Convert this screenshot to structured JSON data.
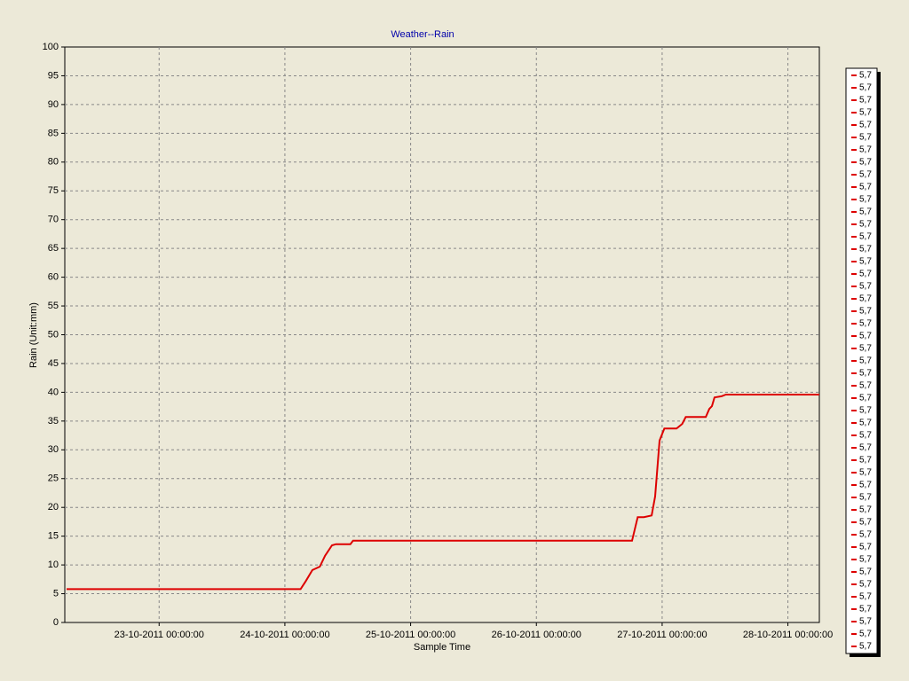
{
  "chart_data": {
    "type": "line",
    "title": "Weather--Rain",
    "x_label": "Sample Time",
    "y_label": "Rain (Unit:mm)",
    "xlim": [
      "22-10-2011 06:00:00",
      "28-10-2011 06:00:00"
    ],
    "xticks": [
      "23-10-2011 00:00:00",
      "24-10-2011 00:00:00",
      "25-10-2011 00:00:00",
      "26-10-2011 00:00:00",
      "27-10-2011 00:00:00",
      "28-10-2011 00:00:00"
    ],
    "ylim": [
      0,
      100
    ],
    "yticks": [
      0,
      5,
      10,
      15,
      20,
      25,
      30,
      35,
      40,
      45,
      50,
      55,
      60,
      65,
      70,
      75,
      80,
      85,
      90,
      95,
      100
    ],
    "grid": true,
    "series": [
      {
        "color": "#dd0000",
        "x": [
          "22-10-2011 06:20:00",
          "24-10-2011 03:00:00",
          "24-10-2011 04:00:00",
          "24-10-2011 05:15:00",
          "24-10-2011 06:40:00",
          "24-10-2011 07:40:00",
          "24-10-2011 09:00:00",
          "24-10-2011 09:45:00",
          "24-10-2011 12:30:00",
          "24-10-2011 13:00:00",
          "26-10-2011 18:15:00",
          "26-10-2011 19:20:00",
          "26-10-2011 20:30:00",
          "26-10-2011 22:00:00",
          "26-10-2011 22:40:00",
          "26-10-2011 23:30:00",
          "27-10-2011 00:25:00",
          "27-10-2011 02:45:00",
          "27-10-2011 03:50:00",
          "27-10-2011 04:30:00",
          "27-10-2011 08:20:00",
          "27-10-2011 09:00:00",
          "27-10-2011 09:30:00",
          "27-10-2011 10:00:00",
          "27-10-2011 11:20:00",
          "27-10-2011 12:10:00",
          "28-10-2011 06:00:00"
        ],
        "values": [
          5.8,
          5.8,
          7.2,
          9.1,
          9.7,
          11.6,
          13.4,
          13.6,
          13.6,
          14.2,
          14.2,
          18.3,
          18.3,
          18.6,
          21.9,
          31.6,
          33.7,
          33.7,
          34.5,
          35.7,
          35.7,
          37.1,
          37.6,
          39.1,
          39.3,
          39.6,
          39.6
        ]
      }
    ],
    "legend": [
      "5,7",
      "5,7",
      "5,7",
      "5,7",
      "5,7",
      "5,7",
      "5,7",
      "5,7",
      "5,7",
      "5,7",
      "5,7",
      "5,7",
      "5,7",
      "5,7",
      "5,7",
      "5,7",
      "5,7",
      "5,7",
      "5,7",
      "5,7",
      "5,7",
      "5,7",
      "5,7",
      "5,7",
      "5,7",
      "5,7",
      "5,7",
      "5,7",
      "5,7",
      "5,7",
      "5,7",
      "5,7",
      "5,7",
      "5,7",
      "5,7",
      "5,7",
      "5,7",
      "5,7",
      "5,7",
      "5,7",
      "5,7",
      "5,7",
      "5,7",
      "5,7",
      "5,7",
      "5,7",
      "5,7"
    ]
  }
}
